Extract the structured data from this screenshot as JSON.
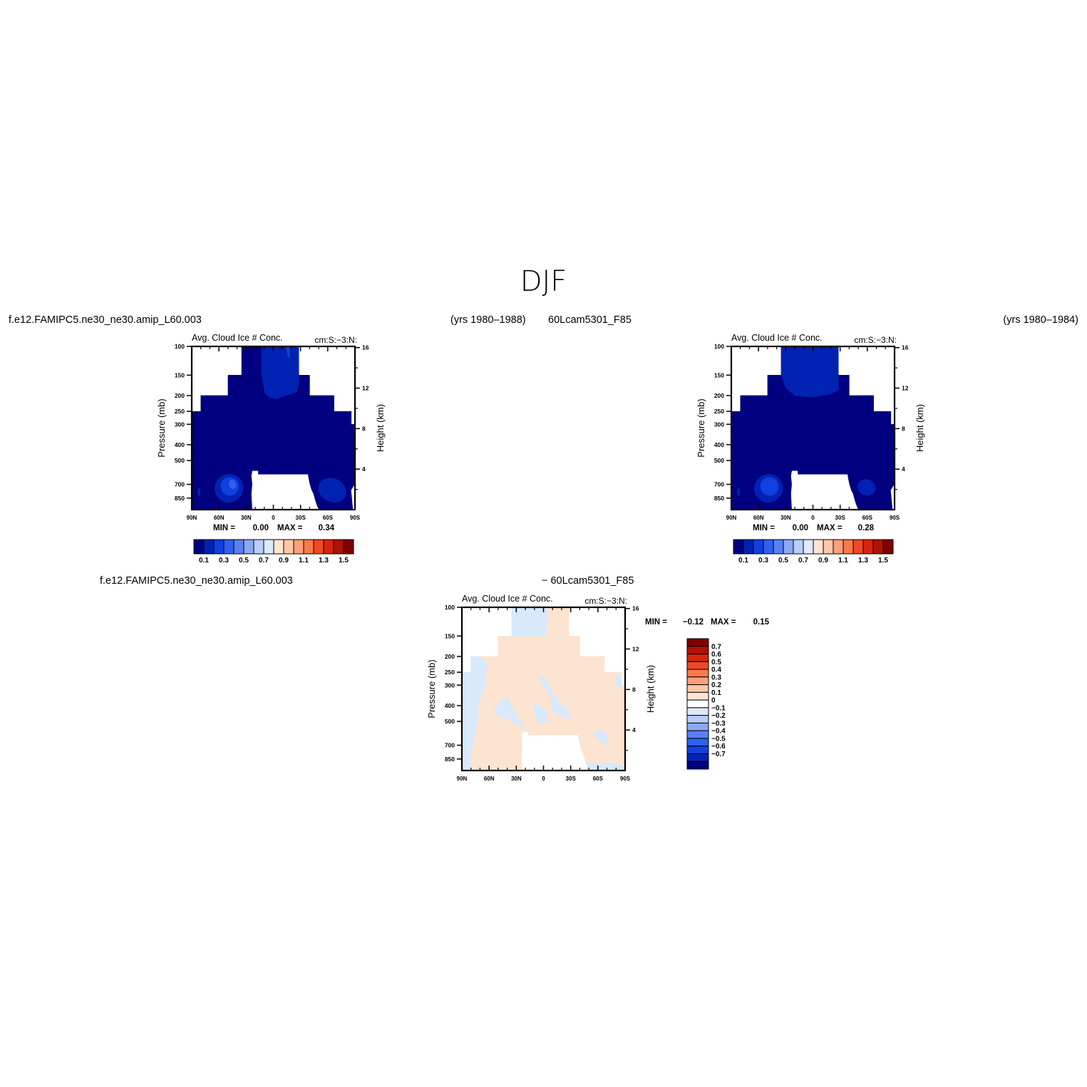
{
  "page": {
    "title": "DJF",
    "case_left": "f.e12.FAMIPC5.ne30_ne30.amip_L60.003",
    "years_left": "(yrs 1980–1988)",
    "case_right": "60Lcam5301_F85",
    "years_right": "(yrs 1980–1984)",
    "diff_case_left": "f.e12.FAMIPC5.ne30_ne30.amip_L60.003",
    "diff_case_right": "− 60Lcam5301_F85"
  },
  "chart_data": [
    {
      "type": "heatmap",
      "name": "panel-left",
      "title": "Avg. Cloud Ice # Conc.",
      "units": "cm:S:−3:N:",
      "ylabel": "Pressure (mb)",
      "y2label": "Height (km)",
      "xticks": [
        "90N",
        "60N",
        "30N",
        "0",
        "30S",
        "60S",
        "90S"
      ],
      "yticks": [
        100,
        150,
        200,
        250,
        300,
        400,
        500,
        700,
        850
      ],
      "y2ticks": [
        16,
        12,
        8,
        4
      ],
      "min_label": "MIN =",
      "min_value": "0.00",
      "max_label": "MAX =",
      "max_value": "0.34",
      "colorbar_labels": [
        "0.1",
        "0.3",
        "0.5",
        "0.7",
        "0.9",
        "1.1",
        "1.3",
        "1.5"
      ]
    },
    {
      "type": "heatmap",
      "name": "panel-right",
      "title": "Avg. Cloud Ice # Conc.",
      "units": "cm:S:−3:N:",
      "ylabel": "Pressure (mb)",
      "y2label": "Height (km)",
      "xticks": [
        "90N",
        "60N",
        "30N",
        "0",
        "30S",
        "60S",
        "90S"
      ],
      "yticks": [
        100,
        150,
        200,
        250,
        300,
        400,
        500,
        700,
        850
      ],
      "y2ticks": [
        16,
        12,
        8,
        4
      ],
      "min_label": "MIN =",
      "min_value": "0.00",
      "max_label": "MAX =",
      "max_value": "0.28",
      "colorbar_labels": [
        "0.1",
        "0.3",
        "0.5",
        "0.7",
        "0.9",
        "1.1",
        "1.3",
        "1.5"
      ]
    },
    {
      "type": "heatmap",
      "name": "panel-diff",
      "title": "Avg. Cloud Ice # Conc.",
      "units": "cm:S:−3:N:",
      "ylabel": "Pressure (mb)",
      "y2label": "Height (km)",
      "xticks": [
        "90N",
        "60N",
        "30N",
        "0",
        "30S",
        "60S",
        "90S"
      ],
      "yticks": [
        100,
        150,
        200,
        250,
        300,
        400,
        500,
        700,
        850
      ],
      "y2ticks": [
        16,
        12,
        8,
        4
      ],
      "min_label": "MIN =",
      "min_value": "−0.12",
      "max_label": "MAX =",
      "max_value": "0.15",
      "colorbar_labels": [
        "0.7",
        "0.6",
        "0.5",
        "0.4",
        "0.3",
        "0.2",
        "0.1",
        "0",
        "−0.1",
        "−0.2",
        "−0.3",
        "−0.4",
        "−0.5",
        "−0.6",
        "−0.7"
      ]
    }
  ],
  "colors": {
    "seq": [
      "#000080",
      "#0022b3",
      "#1040e0",
      "#3060f0",
      "#5a80f5",
      "#8aa8f5",
      "#b8cdf8",
      "#ddeafb",
      "#fde4d0",
      "#fcc7a8",
      "#fba07a",
      "#f87a4a",
      "#f04a22",
      "#d8240c",
      "#b01208",
      "#800000"
    ],
    "div": [
      "#800000",
      "#b01208",
      "#d8240c",
      "#f04a22",
      "#f87a4a",
      "#fba07a",
      "#fcc7a8",
      "#fde4d0",
      "#ffffff",
      "#ddeafb",
      "#b8cdf8",
      "#8aa8f5",
      "#5a80f5",
      "#3060f0",
      "#1040e0",
      "#0022b3",
      "#000080"
    ],
    "diff_pos": "#fde4d0",
    "diff_neg": "#d8e9fb"
  }
}
